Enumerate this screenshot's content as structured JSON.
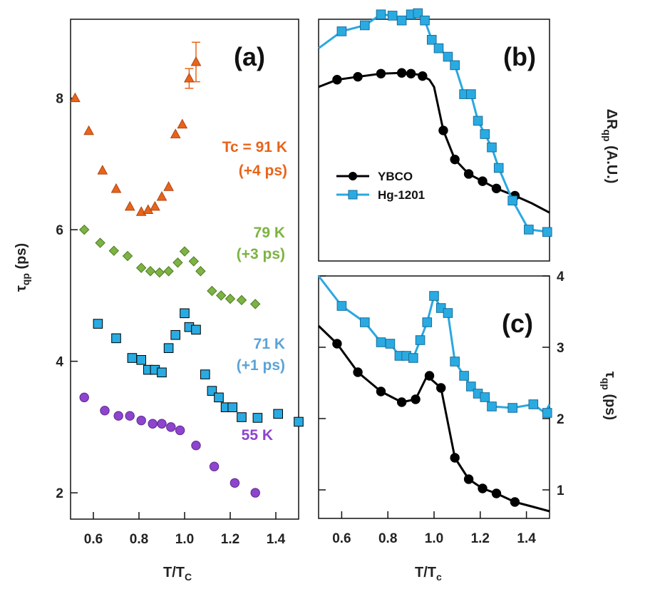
{
  "colors": {
    "orange": "#e8641a",
    "orange_edge": "#b04510",
    "green": "#7cb342",
    "green_edge": "#4f7a22",
    "blue": "#29abe2",
    "blue_line": "#2aa8e0",
    "purple": "#8e44cf",
    "purple_edge": "#5a2a8a",
    "black": "#000000"
  },
  "chart_data": [
    {
      "panel": "a",
      "panel_label": "(a)",
      "type": "scatter",
      "xlabel_main": "T/T",
      "xlabel_sub": "C",
      "ylabel_main": "τ",
      "ylabel_sub": "qp",
      "ylabel_unit": "(ps)",
      "xlim": [
        0.5,
        1.5
      ],
      "ylim": [
        1.6,
        9.2
      ],
      "xticks": [
        0.6,
        0.8,
        1.0,
        1.2,
        1.4
      ],
      "xtick_labels": [
        "0.6",
        "0.8",
        "1.0",
        "1.2",
        "1.4"
      ],
      "yticks": [
        2,
        4,
        6,
        8
      ],
      "ytick_labels": [
        "2",
        "4",
        "6",
        "8"
      ],
      "series": [
        {
          "name": "91 K",
          "annotation_line1": "Tc = 91 K",
          "annotation_line2": "(+4 ps)",
          "color_key": "orange",
          "edge_key": "orange_edge",
          "marker": "triangle",
          "x": [
            0.52,
            0.58,
            0.64,
            0.7,
            0.76,
            0.81,
            0.84,
            0.87,
            0.9,
            0.93,
            0.96,
            0.99,
            1.02,
            1.05
          ],
          "y": [
            8.0,
            7.5,
            6.9,
            6.62,
            6.35,
            6.27,
            6.3,
            6.35,
            6.5,
            6.65,
            7.45,
            7.6,
            8.3,
            8.55
          ],
          "errors": [
            {
              "x": 1.02,
              "lo": 8.15,
              "hi": 8.45
            },
            {
              "x": 1.05,
              "lo": 8.25,
              "hi": 8.85
            }
          ]
        },
        {
          "name": "79 K",
          "annotation_line1": "79 K",
          "annotation_line2": "(+3 ps)",
          "color_key": "green",
          "edge_key": "green_edge",
          "marker": "diamond",
          "x": [
            0.56,
            0.63,
            0.69,
            0.75,
            0.81,
            0.85,
            0.89,
            0.93,
            0.97,
            1.0,
            1.04,
            1.07,
            1.12,
            1.16,
            1.2,
            1.25,
            1.31
          ],
          "y": [
            6.0,
            5.8,
            5.68,
            5.6,
            5.42,
            5.37,
            5.35,
            5.37,
            5.5,
            5.67,
            5.52,
            5.37,
            5.07,
            5.0,
            4.95,
            4.93,
            4.87
          ]
        },
        {
          "name": "71 K",
          "annotation_line1": "71 K",
          "annotation_line2": "(+1 ps)",
          "color_key": "blue",
          "edge_key": "black",
          "marker": "square",
          "x": [
            0.62,
            0.7,
            0.77,
            0.81,
            0.84,
            0.87,
            0.9,
            0.93,
            0.96,
            1.0,
            1.02,
            1.05,
            1.09,
            1.12,
            1.15,
            1.18,
            1.21,
            1.25,
            1.32,
            1.41,
            1.5
          ],
          "y": [
            4.57,
            4.35,
            4.05,
            4.02,
            3.87,
            3.87,
            3.83,
            4.2,
            4.4,
            4.73,
            4.52,
            4.48,
            3.8,
            3.55,
            3.45,
            3.3,
            3.3,
            3.15,
            3.14,
            3.2,
            3.08
          ]
        },
        {
          "name": "55 K",
          "annotation_line1": "55 K",
          "annotation_line2": "",
          "color_key": "purple",
          "edge_key": "purple_edge",
          "marker": "circle",
          "x": [
            0.56,
            0.65,
            0.71,
            0.76,
            0.81,
            0.86,
            0.9,
            0.94,
            0.98,
            1.05,
            1.13,
            1.22,
            1.31
          ],
          "y": [
            3.45,
            3.25,
            3.17,
            3.17,
            3.1,
            3.05,
            3.05,
            3.0,
            2.95,
            2.72,
            2.4,
            2.15,
            2.0
          ]
        }
      ]
    },
    {
      "panel": "b",
      "panel_label": "(b)",
      "type": "line",
      "xlim": [
        0.5,
        1.5
      ],
      "ylim": [
        0,
        10
      ],
      "ylabel": "ΔR",
      "ylabel_sub": "qp",
      "ylabel_unit": "(A.U.)",
      "legend_position": "middle-left",
      "series": [
        {
          "name": "YBCO",
          "color_key": "black",
          "marker": "circle",
          "x": [
            0.5,
            0.58,
            0.67,
            0.77,
            0.86,
            0.9,
            0.94,
            0.98,
            1.0,
            1.04,
            1.09,
            1.15,
            1.21,
            1.27,
            1.35,
            1.42,
            1.5
          ],
          "y": [
            7.2,
            7.5,
            7.62,
            7.75,
            7.78,
            7.75,
            7.7,
            7.5,
            7.2,
            5.4,
            4.2,
            3.6,
            3.3,
            3.0,
            2.7,
            2.4,
            2.0
          ],
          "markers_x": [
            0.58,
            0.67,
            0.77,
            0.86,
            0.9,
            0.95,
            1.04,
            1.09,
            1.15,
            1.21,
            1.27,
            1.35
          ],
          "markers_y": [
            7.5,
            7.62,
            7.75,
            7.78,
            7.75,
            7.65,
            5.4,
            4.2,
            3.6,
            3.3,
            3.0,
            2.7
          ]
        },
        {
          "name": "Hg-1201",
          "color_key": "blue_line",
          "marker": "square",
          "x": [
            0.5,
            0.6,
            0.7,
            0.77,
            0.82,
            0.86,
            0.9,
            0.93,
            0.96,
            0.99,
            1.02,
            1.06,
            1.09,
            1.13,
            1.16,
            1.19,
            1.22,
            1.25,
            1.28,
            1.34,
            1.41,
            1.5
          ],
          "y": [
            8.8,
            9.5,
            9.75,
            10.2,
            10.15,
            9.95,
            10.2,
            10.25,
            9.95,
            9.15,
            8.8,
            8.45,
            8.1,
            6.9,
            6.9,
            5.8,
            5.25,
            4.7,
            3.85,
            2.5,
            1.3,
            1.2
          ],
          "markers_x": [
            0.6,
            0.7,
            0.77,
            0.82,
            0.86,
            0.9,
            0.93,
            0.96,
            0.99,
            1.02,
            1.06,
            1.09,
            1.13,
            1.16,
            1.19,
            1.22,
            1.25,
            1.28,
            1.34,
            1.41,
            1.49
          ],
          "markers_y": [
            9.5,
            9.75,
            10.2,
            10.15,
            9.95,
            10.2,
            10.25,
            9.95,
            9.15,
            8.8,
            8.45,
            8.1,
            6.9,
            6.9,
            5.8,
            5.25,
            4.7,
            3.85,
            2.5,
            1.3,
            1.2
          ]
        }
      ]
    },
    {
      "panel": "c",
      "panel_label": "(c)",
      "type": "line",
      "xlabel_main": "T/T",
      "xlabel_sub": "c",
      "ylabel": "τ",
      "ylabel_sub": "qp",
      "ylabel_unit": "(ps)",
      "xlim": [
        0.5,
        1.5
      ],
      "ylim": [
        0.6,
        4.0
      ],
      "xticks": [
        0.6,
        0.8,
        1.0,
        1.2,
        1.4
      ],
      "xtick_labels": [
        "0.6",
        "0.8",
        "1.0",
        "1.2",
        "1.4"
      ],
      "yticks": [
        1,
        2,
        3,
        4
      ],
      "ytick_labels": [
        "1",
        "2",
        "3",
        "4"
      ],
      "series": [
        {
          "name": "YBCO",
          "color_key": "black",
          "marker": "circle",
          "x": [
            0.5,
            0.58,
            0.67,
            0.77,
            0.86,
            0.92,
            0.97,
            1.03,
            1.09,
            1.15,
            1.21,
            1.27,
            1.35,
            1.42,
            1.5
          ],
          "y": [
            3.3,
            3.05,
            2.65,
            2.38,
            2.23,
            2.27,
            2.6,
            2.43,
            1.45,
            1.15,
            1.02,
            0.95,
            0.83,
            0.77,
            0.7
          ],
          "markers_x": [
            0.58,
            0.67,
            0.77,
            0.86,
            0.92,
            0.98,
            1.03,
            1.09,
            1.15,
            1.21,
            1.27,
            1.35
          ],
          "markers_y": [
            3.05,
            2.65,
            2.38,
            2.23,
            2.27,
            2.6,
            2.43,
            1.45,
            1.15,
            1.02,
            0.95,
            0.83
          ]
        },
        {
          "name": "Hg-1201",
          "color_key": "blue_line",
          "marker": "square",
          "x": [
            0.5,
            0.6,
            0.7,
            0.77,
            0.81,
            0.85,
            0.88,
            0.91,
            0.94,
            0.97,
            1.0,
            1.03,
            1.06,
            1.09,
            1.13,
            1.16,
            1.19,
            1.22,
            1.25,
            1.34,
            1.43,
            1.48,
            1.5
          ],
          "y": [
            4.0,
            3.58,
            3.35,
            3.07,
            3.05,
            2.88,
            2.88,
            2.85,
            3.1,
            3.35,
            3.72,
            3.55,
            3.48,
            2.8,
            2.6,
            2.45,
            2.35,
            2.3,
            2.17,
            2.15,
            2.2,
            2.08,
            2.2
          ],
          "markers_x": [
            0.6,
            0.7,
            0.77,
            0.81,
            0.85,
            0.88,
            0.91,
            0.94,
            0.97,
            1.0,
            1.03,
            1.06,
            1.09,
            1.13,
            1.16,
            1.19,
            1.22,
            1.25,
            1.34,
            1.43,
            1.49
          ],
          "markers_y": [
            3.58,
            3.35,
            3.07,
            3.05,
            2.88,
            2.88,
            2.85,
            3.1,
            3.35,
            3.72,
            3.55,
            3.48,
            2.8,
            2.6,
            2.45,
            2.35,
            2.3,
            2.17,
            2.15,
            2.2,
            2.08
          ]
        }
      ]
    }
  ]
}
